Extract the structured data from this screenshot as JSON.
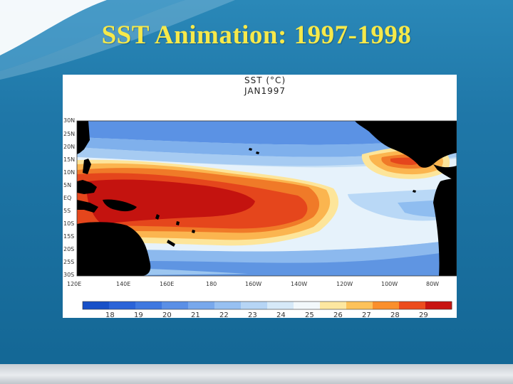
{
  "slide": {
    "title": "SST Animation: 1997-1998"
  },
  "map": {
    "title_line1": "SST (°C)",
    "title_line2": "JAN1997",
    "lat_labels": [
      "30N",
      "25N",
      "20N",
      "15N",
      "10N",
      "5N",
      "EQ",
      "5S",
      "10S",
      "15S",
      "20S",
      "25S",
      "30S"
    ],
    "lon_labels": [
      "120E",
      "140E",
      "160E",
      "180",
      "160W",
      "140W",
      "120W",
      "100W",
      "80W"
    ],
    "colorbar": {
      "tick_labels": [
        "18",
        "19",
        "20",
        "21",
        "22",
        "23",
        "24",
        "25",
        "26",
        "27",
        "28",
        "29"
      ],
      "colors": [
        "#1750c8",
        "#2a63d8",
        "#3f78e0",
        "#5a8fe6",
        "#78a8ec",
        "#97c0f1",
        "#b6d5f5",
        "#d6e9f8",
        "#f2f8fb",
        "#fde7a0",
        "#fdc25a",
        "#fa8f2c",
        "#ec4c1d",
        "#c81411"
      ]
    }
  }
}
